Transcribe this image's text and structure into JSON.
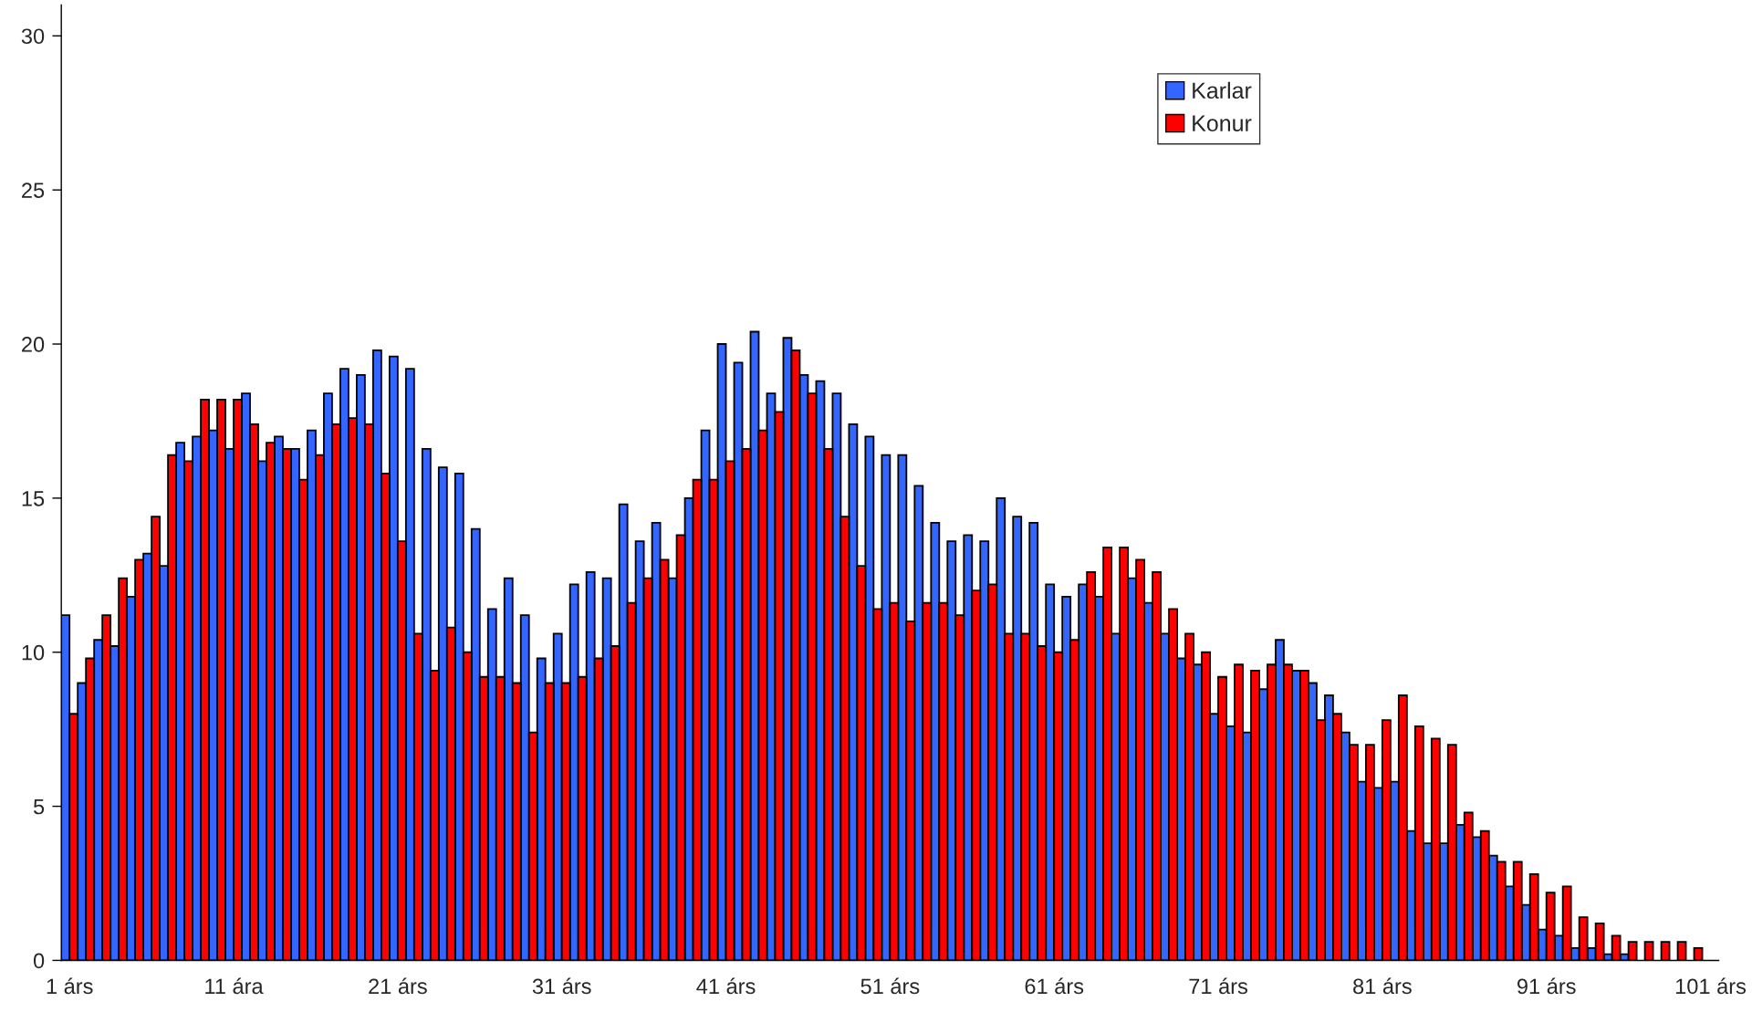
{
  "chart_data": {
    "type": "bar",
    "categories": [
      "1 árs",
      null,
      null,
      null,
      null,
      null,
      null,
      null,
      null,
      null,
      "11 ára",
      null,
      null,
      null,
      null,
      null,
      null,
      null,
      null,
      null,
      "21 árs",
      null,
      null,
      null,
      null,
      null,
      null,
      null,
      null,
      null,
      "31 árs",
      null,
      null,
      null,
      null,
      null,
      null,
      null,
      null,
      null,
      "41 árs",
      null,
      null,
      null,
      null,
      null,
      null,
      null,
      null,
      null,
      "51 árs",
      null,
      null,
      null,
      null,
      null,
      null,
      null,
      null,
      null,
      "61 árs",
      null,
      null,
      null,
      null,
      null,
      null,
      null,
      null,
      null,
      "71 árs",
      null,
      null,
      null,
      null,
      null,
      null,
      null,
      null,
      null,
      "81 árs",
      null,
      null,
      null,
      null,
      null,
      null,
      null,
      null,
      null,
      "91 árs",
      null,
      null,
      null,
      null,
      null,
      null,
      null,
      null,
      null,
      "101 árs"
    ],
    "series": [
      {
        "name": "Karlar",
        "color": "#3366ff",
        "values": [
          11.2,
          9.0,
          10.4,
          10.2,
          11.8,
          13.2,
          12.8,
          16.8,
          17.0,
          17.2,
          16.6,
          18.4,
          16.2,
          17.0,
          16.6,
          17.2,
          18.4,
          19.2,
          19.0,
          19.8,
          19.6,
          19.2,
          16.6,
          16.0,
          15.8,
          14.0,
          11.4,
          12.4,
          11.2,
          9.8,
          10.6,
          12.2,
          12.6,
          12.4,
          14.8,
          13.6,
          14.2,
          12.4,
          15.0,
          17.2,
          20.0,
          19.4,
          20.4,
          18.4,
          20.2,
          19.0,
          18.8,
          18.4,
          17.4,
          17.0,
          16.4,
          16.4,
          15.4,
          14.2,
          13.6,
          13.8,
          13.6,
          15.0,
          14.4,
          14.2,
          12.2,
          11.8,
          12.2,
          11.8,
          10.6,
          12.4,
          11.6,
          10.6,
          9.8,
          9.6,
          8.0,
          7.6,
          7.4,
          8.8,
          10.4,
          9.4,
          9.0,
          8.6,
          7.4,
          5.8,
          5.6,
          5.8,
          4.2,
          3.8,
          3.8,
          4.4,
          4.0,
          3.4,
          2.4,
          1.8,
          1.0,
          0.8,
          0.4,
          0.4,
          0.2,
          0.2,
          null,
          null,
          null,
          null,
          null
        ]
      },
      {
        "name": "Konur",
        "color": "#ff0000",
        "values": [
          8.0,
          9.8,
          11.2,
          12.4,
          13.0,
          14.4,
          16.4,
          16.2,
          18.2,
          18.2,
          18.2,
          17.4,
          16.8,
          16.6,
          15.6,
          16.4,
          17.4,
          17.6,
          17.4,
          15.8,
          13.6,
          10.6,
          9.4,
          10.8,
          10.0,
          9.2,
          9.2,
          9.0,
          7.4,
          9.0,
          9.0,
          9.2,
          9.8,
          10.2,
          11.6,
          12.4,
          13.0,
          13.8,
          15.6,
          15.6,
          16.2,
          16.6,
          17.2,
          17.8,
          19.8,
          18.4,
          16.6,
          14.4,
          12.8,
          11.4,
          11.6,
          11.0,
          11.6,
          11.6,
          11.2,
          12.0,
          12.2,
          10.6,
          10.6,
          10.2,
          10.0,
          10.4,
          12.6,
          13.4,
          13.4,
          13.0,
          12.6,
          11.4,
          10.6,
          10.0,
          9.2,
          9.6,
          9.4,
          9.6,
          9.6,
          9.4,
          7.8,
          8.0,
          7.0,
          7.0,
          7.8,
          8.6,
          7.6,
          7.2,
          7.0,
          4.8,
          4.2,
          3.2,
          3.2,
          2.8,
          2.2,
          2.4,
          1.4,
          1.2,
          0.8,
          0.6,
          0.6,
          0.6,
          0.6,
          0.4,
          null
        ]
      }
    ],
    "ylim": [
      0,
      31
    ],
    "yticks": [
      0,
      5,
      10,
      15,
      20,
      25,
      30
    ],
    "grid": false,
    "legend": "top right"
  }
}
